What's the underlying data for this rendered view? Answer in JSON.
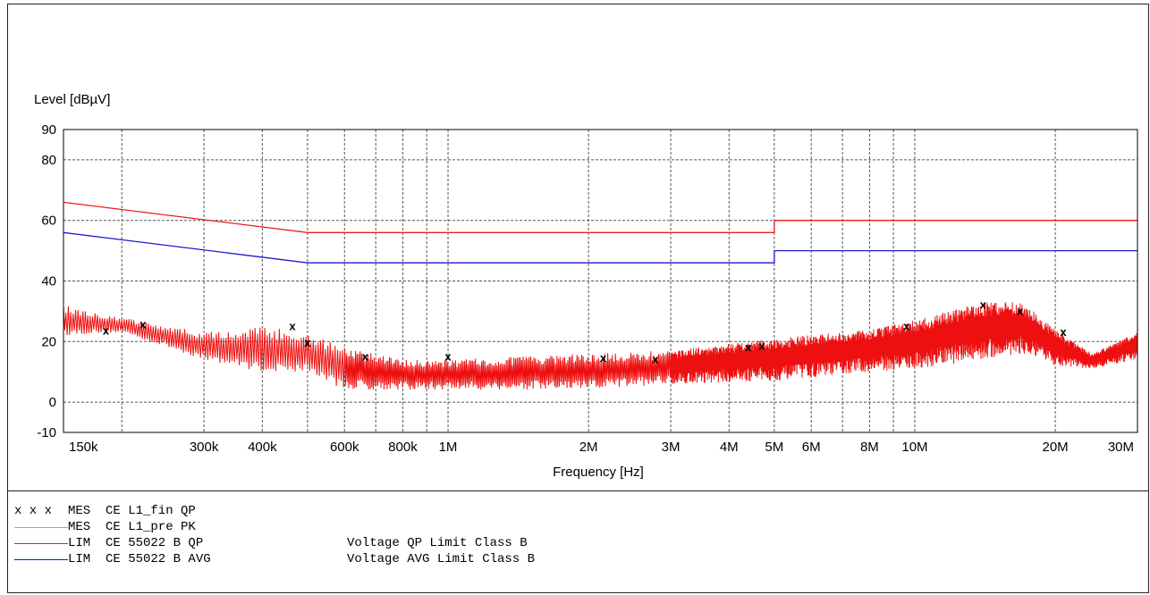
{
  "chart_data": {
    "type": "line",
    "title": "",
    "ylabel": "Level [dBµV]",
    "xlabel": "Frequency [Hz]",
    "x_scale": "log",
    "xlim": [
      150000,
      30000000
    ],
    "ylim": [
      -10,
      90
    ],
    "y_ticks": [
      90,
      80,
      60,
      40,
      20,
      0,
      -10
    ],
    "x_ticks": [
      {
        "value": 150000,
        "label": "150k"
      },
      {
        "value": 300000,
        "label": "300k"
      },
      {
        "value": 400000,
        "label": "400k"
      },
      {
        "value": 600000,
        "label": "600k"
      },
      {
        "value": 800000,
        "label": "800k"
      },
      {
        "value": 1000000,
        "label": "1M"
      },
      {
        "value": 2000000,
        "label": "2M"
      },
      {
        "value": 3000000,
        "label": "3M"
      },
      {
        "value": 4000000,
        "label": "4M"
      },
      {
        "value": 5000000,
        "label": "5M"
      },
      {
        "value": 6000000,
        "label": "6M"
      },
      {
        "value": 8000000,
        "label": "8M"
      },
      {
        "value": 10000000,
        "label": "10M"
      },
      {
        "value": 20000000,
        "label": "20M"
      },
      {
        "value": 30000000,
        "label": "30M"
      }
    ],
    "x_gridlines": [
      200000,
      300000,
      400000,
      500000,
      600000,
      700000,
      800000,
      900000,
      1000000,
      2000000,
      3000000,
      4000000,
      5000000,
      6000000,
      7000000,
      8000000,
      9000000,
      10000000,
      20000000
    ],
    "y_gridlines": [
      80,
      60,
      40,
      20,
      0
    ],
    "grid": true,
    "series": [
      {
        "kind": "limit",
        "style": "line",
        "color": "#ee1c1c",
        "points": [
          [
            150000,
            66
          ],
          [
            500000,
            56
          ],
          [
            5000000,
            56
          ],
          [
            5000000,
            60
          ],
          [
            30000000,
            60
          ]
        ]
      },
      {
        "kind": "limit",
        "style": "line",
        "color": "#1c1ccc",
        "points": [
          [
            150000,
            56
          ],
          [
            500000,
            46
          ],
          [
            5000000,
            46
          ],
          [
            5000000,
            50
          ],
          [
            30000000,
            50
          ]
        ]
      },
      {
        "kind": "measurement",
        "style": "line",
        "color": "#ee1010",
        "envelope": [
          [
            150000,
            22,
            32
          ],
          [
            200000,
            23,
            28
          ],
          [
            300000,
            14,
            23
          ],
          [
            400000,
            10,
            25
          ],
          [
            500000,
            10,
            23
          ],
          [
            600000,
            4,
            18
          ],
          [
            800000,
            4,
            14
          ],
          [
            1000000,
            4,
            14
          ],
          [
            2000000,
            4,
            16
          ],
          [
            3000000,
            6,
            17
          ],
          [
            5000000,
            7,
            21
          ],
          [
            8000000,
            10,
            24
          ],
          [
            10000000,
            11,
            27
          ],
          [
            14000000,
            14,
            33
          ],
          [
            17000000,
            16,
            33
          ],
          [
            20000000,
            12,
            24
          ],
          [
            24000000,
            11,
            16
          ],
          [
            30000000,
            14,
            23
          ]
        ]
      },
      {
        "kind": "measurement",
        "style": "markers",
        "marker": "x",
        "color": "#000000",
        "points": [
          [
            185000,
            23.5
          ],
          [
            222000,
            25.5
          ],
          [
            464000,
            25
          ],
          [
            500000,
            19.5
          ],
          [
            665000,
            15
          ],
          [
            1000000,
            15
          ],
          [
            2150000,
            14.5
          ],
          [
            2780000,
            14
          ],
          [
            4400000,
            18
          ],
          [
            4700000,
            18.5
          ],
          [
            9600000,
            25
          ],
          [
            14000000,
            32
          ],
          [
            16800000,
            30
          ],
          [
            20800000,
            23
          ]
        ]
      }
    ],
    "legend": [
      {
        "kind": "MES",
        "name": "CE L1_fin QP",
        "desc": "",
        "marks": "x x x",
        "color": "#000000",
        "style": "markers"
      },
      {
        "kind": "MES",
        "name": "CE L1_pre PK",
        "desc": "",
        "marks": "",
        "color": "#f08080",
        "style": "line"
      },
      {
        "kind": "LIM",
        "name": "CE 55022 B QP",
        "desc": "Voltage QP Limit Class B",
        "marks": "",
        "color": "#ee1c1c",
        "style": "line"
      },
      {
        "kind": "LIM",
        "name": "CE 55022 B AVG",
        "desc": "Voltage AVG Limit Class B",
        "marks": "",
        "color": "#1c1ccc",
        "style": "line"
      }
    ]
  }
}
